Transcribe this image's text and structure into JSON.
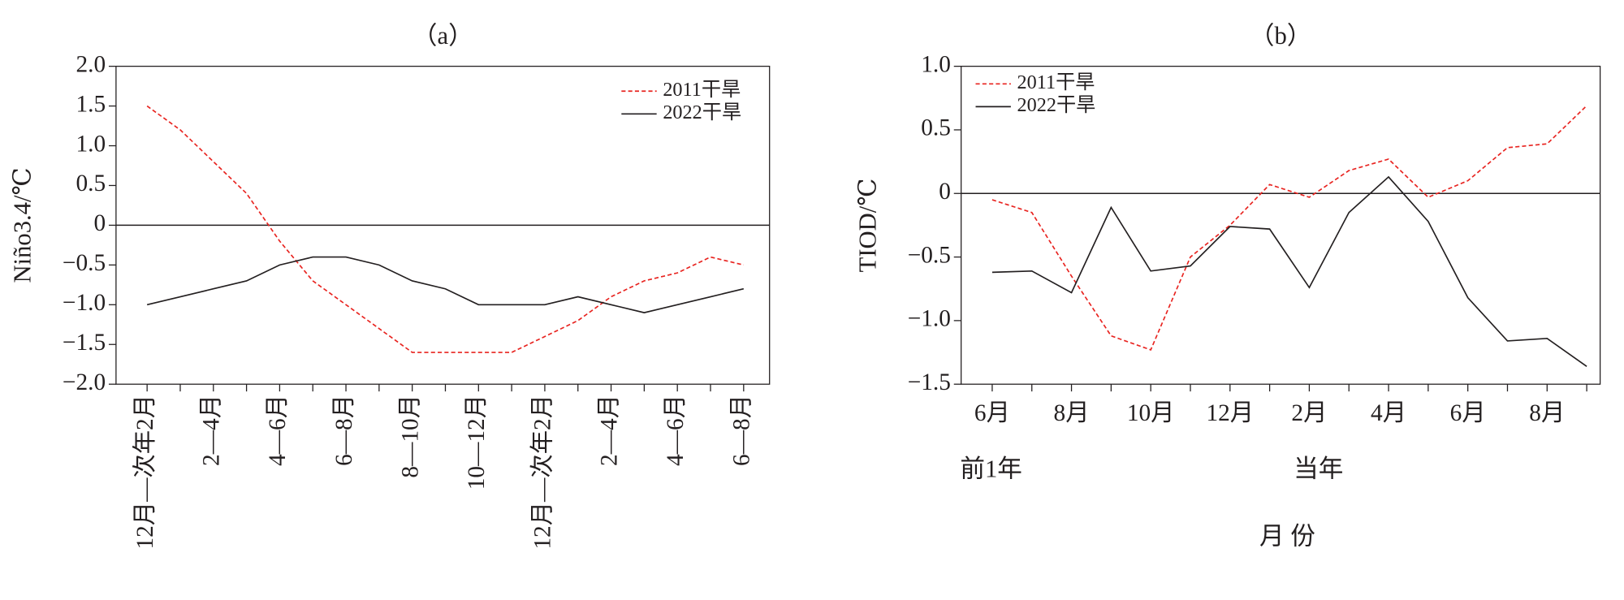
{
  "chart_data": [
    {
      "type": "line",
      "title": "（a）",
      "y_label": "Niño3.4/℃",
      "legend": "upper right",
      "categories": [
        "12月—次年2月",
        null,
        "2—4月",
        null,
        "4—6月",
        null,
        "6—8月",
        null,
        "8—10月",
        null,
        "10—12月",
        null,
        "12月—次年2月",
        null,
        "2—4月",
        null,
        "4—6月",
        null,
        "6—8月"
      ],
      "series": [
        {
          "name": "2011干旱",
          "color": "#e8231f",
          "dash": true,
          "values": [
            1.5,
            1.2,
            0.8,
            0.4,
            -0.2,
            -0.7,
            -1.0,
            -1.3,
            -1.6,
            -1.6,
            -1.6,
            -1.6,
            -1.4,
            -1.2,
            -0.9,
            -0.7,
            -0.6,
            -0.4,
            -0.5
          ]
        },
        {
          "name": "2022干旱",
          "color": "#231f20",
          "dash": false,
          "values": [
            -1.0,
            -0.9,
            -0.8,
            -0.7,
            -0.5,
            -0.4,
            -0.4,
            -0.5,
            -0.7,
            -0.8,
            -1.0,
            -1.0,
            -1.0,
            -0.9,
            -1.0,
            -1.1,
            -1.0,
            -0.9,
            -0.8
          ]
        }
      ],
      "ylim": [
        -2,
        2
      ],
      "yticks": [
        {
          "value": 2,
          "label": "2.0"
        },
        1.5,
        {
          "value": 1,
          "label": "1.0"
        },
        0.5,
        0,
        {
          "value": -0.5,
          "label": "−0.5"
        },
        {
          "value": -1,
          "label": "−1.0"
        },
        {
          "value": -1.5,
          "label": "−1.5"
        },
        {
          "value": -2,
          "label": "−2.0"
        }
      ]
    },
    {
      "type": "line",
      "title": "（b）",
      "y_label": "TIOD/℃",
      "x_label": "月 份",
      "legend": "upper left",
      "annotations": [
        "前1年",
        "当年"
      ],
      "categories": [
        "6月",
        null,
        "8月",
        null,
        "10月",
        null,
        "12月",
        null,
        "2月",
        null,
        "4月",
        null,
        "6月",
        null,
        "8月",
        null
      ],
      "series": [
        {
          "name": "2011干旱",
          "color": "#e8231f",
          "dash": true,
          "values": [
            -0.05,
            -0.15,
            -0.65,
            -1.12,
            -1.23,
            -0.5,
            -0.25,
            0.07,
            -0.03,
            0.18,
            0.27,
            -0.03,
            0.1,
            0.36,
            0.39,
            0.69
          ]
        },
        {
          "name": "2022干旱",
          "color": "#231f20",
          "dash": false,
          "values": [
            -0.62,
            -0.61,
            -0.78,
            -0.11,
            -0.61,
            -0.57,
            -0.26,
            -0.28,
            -0.74,
            -0.15,
            0.13,
            -0.22,
            -0.82,
            -1.16,
            -1.14,
            -1.36
          ]
        }
      ],
      "ylim": [
        -1.5,
        1
      ],
      "yticks": [
        {
          "value": 1,
          "label": "1.0"
        },
        0.5,
        0,
        {
          "value": -0.5,
          "label": "−0.5"
        },
        {
          "value": -1,
          "label": "−1.0"
        },
        {
          "value": -1.5,
          "label": "−1.5"
        }
      ]
    }
  ]
}
